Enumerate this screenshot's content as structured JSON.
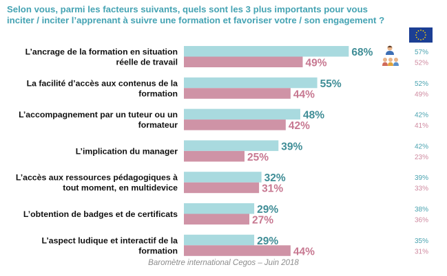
{
  "title_lines": [
    "Selon vous, parmi les facteurs suivants, quels sont les 3 plus importants pour vous",
    "inciter / inciter l’apprenant à suivre une formation et favoriser votre / son engagement ?"
  ],
  "source": "Baromètre international Cegos – Juin 2018",
  "colors": {
    "title": "#45a3b3",
    "bar_top": "#a9dadf",
    "bar_bottom": "#cf93a6",
    "value_top": "#3f8d96",
    "value_bottom": "#c77891",
    "eu_top": "#4aa3b0",
    "eu_bottom": "#cf8aa0",
    "eu_flag": "#1c3f94",
    "eu_star": "#ffd500"
  },
  "icons": {
    "top_series": "person-icon",
    "bottom_series": "group-icon",
    "europe": "eu-flag-icon"
  },
  "chart_data": {
    "type": "bar",
    "orientation": "horizontal",
    "xlim": [
      0,
      100
    ],
    "unit": "%",
    "categories": [
      [
        "L’ancrage de la formation en situation",
        "réelle de travail"
      ],
      [
        "La facilité d’accès aux contenus de la",
        "formation"
      ],
      [
        "L’accompagnement par un tuteur ou un",
        "formateur"
      ],
      [
        "L’implication du manager"
      ],
      [
        "L’accès aux ressources pédagogiques à",
        "tout moment, en multidevice"
      ],
      [
        "L’obtention de badges et de certificats"
      ],
      [
        "L’aspect ludique et interactif de la",
        "formation"
      ]
    ],
    "series": [
      {
        "values": [
          68,
          55,
          48,
          39,
          32,
          29,
          29
        ],
        "labels": [
          "68%",
          "55%",
          "48%",
          "39%",
          "32%",
          "29%",
          "29%"
        ],
        "europe": [
          "57%",
          "52%",
          "42%",
          "42%",
          "39%",
          "38%",
          "35%"
        ]
      },
      {
        "values": [
          49,
          44,
          42,
          25,
          31,
          27,
          44
        ],
        "labels": [
          "49%",
          "44%",
          "42%",
          "25%",
          "31%",
          "27%",
          "44%"
        ],
        "europe": [
          "52%",
          "49%",
          "41%",
          "23%",
          "33%",
          "36%",
          "31%"
        ]
      }
    ]
  }
}
